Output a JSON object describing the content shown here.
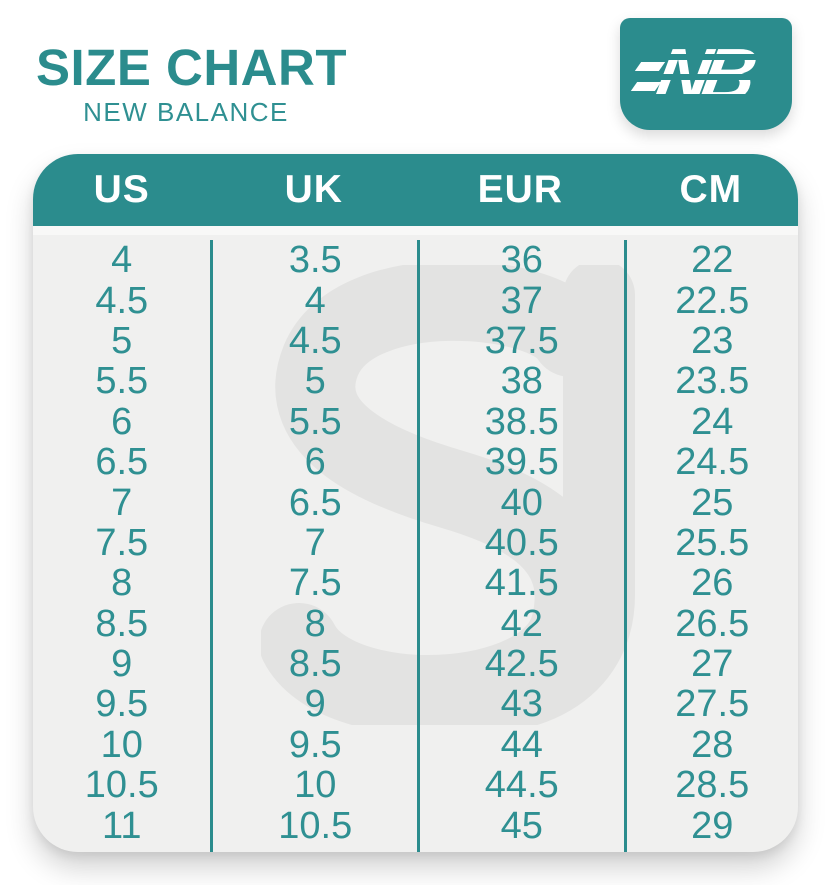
{
  "page": {
    "title": "SIZE CHART",
    "subtitle": "NEW BALANCE",
    "logo_text": "NB",
    "watermark_text": "SJ"
  },
  "colors": {
    "teal_accent": "#2b8c8d",
    "number_teal": "#2f9092",
    "header_text": "#ffffff",
    "table_background": "#f0f0ef",
    "watermark_gray": "#e3e3e2",
    "page_background": "#ffffff"
  },
  "chart_data": {
    "type": "table",
    "title": "SIZE CHART",
    "subtitle": "NEW BALANCE",
    "columns": [
      "US",
      "UK",
      "EUR",
      "CM"
    ],
    "rows": [
      [
        "4",
        "3.5",
        "36",
        "22"
      ],
      [
        "4.5",
        "4",
        "37",
        "22.5"
      ],
      [
        "5",
        "4.5",
        "37.5",
        "23"
      ],
      [
        "5.5",
        "5",
        "38",
        "23.5"
      ],
      [
        "6",
        "5.5",
        "38.5",
        "24"
      ],
      [
        "6.5",
        "6",
        "39.5",
        "24.5"
      ],
      [
        "7",
        "6.5",
        "40",
        "25"
      ],
      [
        "7.5",
        "7",
        "40.5",
        "25.5"
      ],
      [
        "8",
        "7.5",
        "41.5",
        "26"
      ],
      [
        "8.5",
        "8",
        "42",
        "26.5"
      ],
      [
        "9",
        "8.5",
        "42.5",
        "27"
      ],
      [
        "9.5",
        "9",
        "43",
        "27.5"
      ],
      [
        "10",
        "9.5",
        "44",
        "28"
      ],
      [
        "10.5",
        "10",
        "44.5",
        "28.5"
      ],
      [
        "11",
        "10.5",
        "45",
        "29"
      ]
    ],
    "layout": {
      "grid": false,
      "column_dividers": true,
      "header_position": "top"
    }
  }
}
